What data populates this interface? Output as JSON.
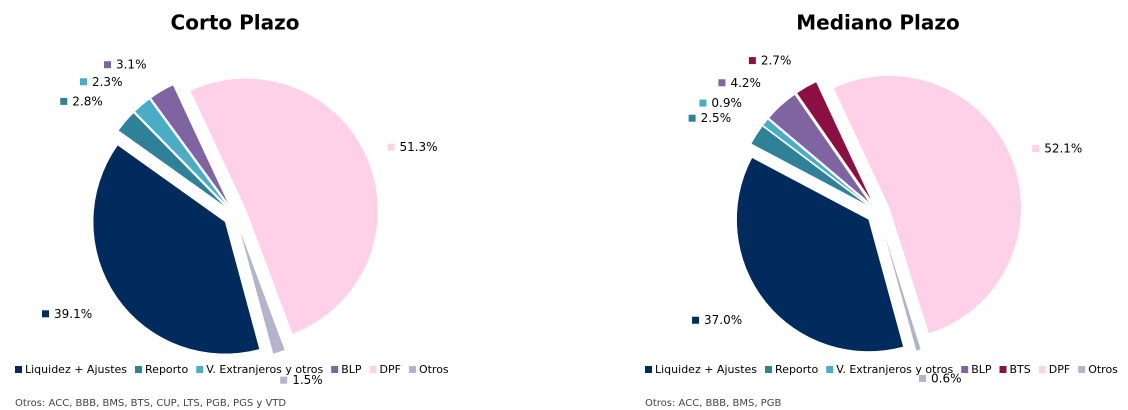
{
  "chart_data": [
    {
      "type": "pie",
      "title": "Corto Plazo",
      "categories": [
        "Liquidez + Ajustes",
        "Reporto",
        "V. Extranjeros y otros",
        "BLP",
        "DPF",
        "Otros"
      ],
      "values": [
        39.1,
        2.8,
        2.3,
        3.1,
        51.3,
        1.5
      ],
      "value_labels": [
        "39.1%",
        "2.8%",
        "2.3%",
        "3.1%",
        "51.3%",
        "1.5%"
      ],
      "colors": [
        "#002b5c",
        "#2e8196",
        "#4bacc6",
        "#8064a2",
        "#ffd1e8",
        "#b3b3cc"
      ],
      "note": "Otros: ACC, BBB, BMS, BTS, CUP, LTS, PGB, PGS y VTD"
    },
    {
      "type": "pie",
      "title": "Mediano Plazo",
      "categories": [
        "Liquidez + Ajustes",
        "Reporto",
        "V. Extranjeros y otros",
        "BLP",
        "BTS",
        "DPF",
        "Otros"
      ],
      "values": [
        37.0,
        2.5,
        0.9,
        4.2,
        2.7,
        52.1,
        0.6
      ],
      "value_labels": [
        "37.0%",
        "2.5%",
        "0.9%",
        "4.2%",
        "2.7%",
        "52.1%",
        "0.6%"
      ],
      "colors": [
        "#002b5c",
        "#2e8196",
        "#4bacc6",
        "#8064a2",
        "#8b0f42",
        "#ffd1e8",
        "#b3b3cc"
      ],
      "note": "Otros: ACC, BBB, BMS, PGB"
    }
  ]
}
